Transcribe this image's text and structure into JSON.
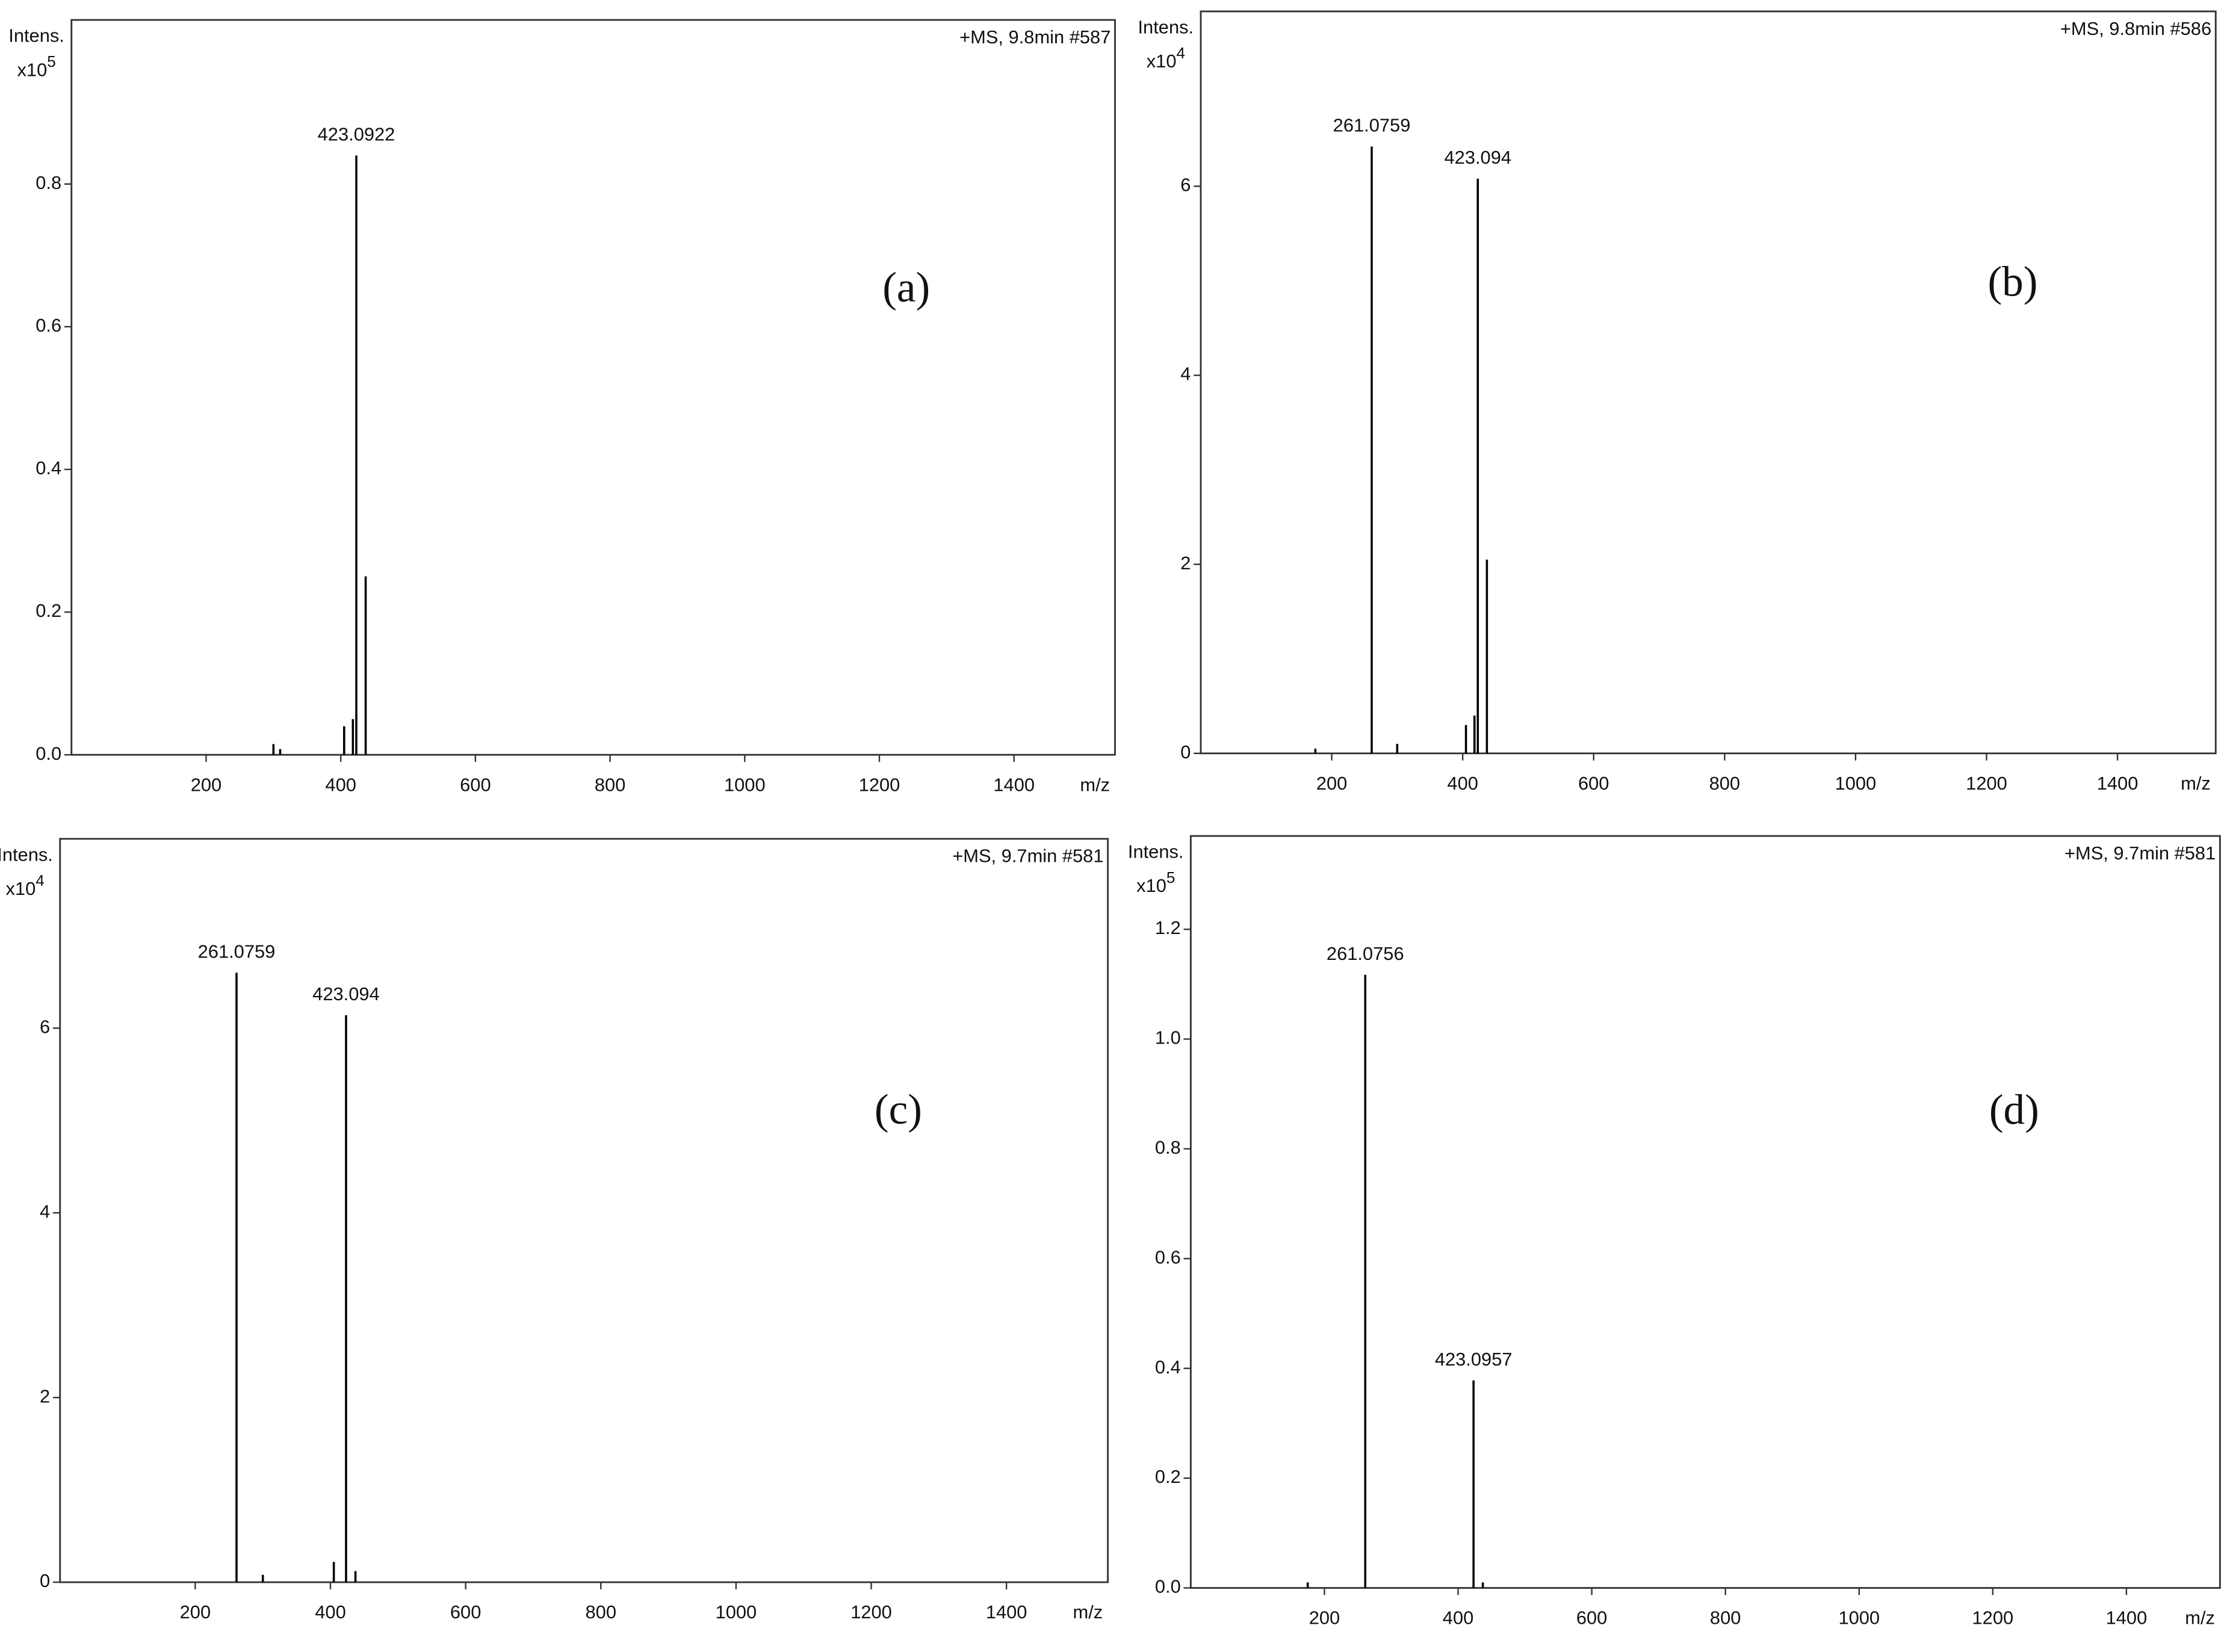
{
  "chart_data": [
    {
      "type": "spectrum",
      "title": "+MS, 9.8min #587",
      "panel_label": "(a)",
      "y_label": "Intens.",
      "y_multiplier": "x10",
      "y_exponent": "5",
      "x_label": "m/z",
      "peaks": {
        "x": [
          423.0922
        ],
        "values": [
          0.84
        ]
      },
      "minor_peaks": {
        "x": [
          300,
          310,
          405,
          418,
          437
        ],
        "values": [
          0.015,
          0.008,
          0.04,
          0.05,
          0.25
        ]
      },
      "xlim": [
        0,
        1550
      ],
      "ylim": [
        0,
        1.03
      ],
      "xticks": [
        200,
        400,
        600,
        800,
        1000,
        1200,
        1400
      ],
      "yticks": [
        {
          "value": 0,
          "label": "0.0"
        },
        0.2,
        0.4,
        0.6,
        0.8
      ],
      "color": "#000000"
    },
    {
      "type": "spectrum",
      "title": "+MS, 9.8min #586",
      "panel_label": "(b)",
      "y_label": "Intens.",
      "y_multiplier": "x10",
      "y_exponent": "4",
      "x_label": "m/z",
      "peaks": {
        "x": [
          261.0759,
          423.094
        ],
        "values": [
          6.42,
          6.08
        ]
      },
      "minor_peaks": {
        "x": [
          175,
          300,
          405,
          418,
          437
        ],
        "values": [
          0.05,
          0.1,
          0.3,
          0.4,
          2.05
        ]
      },
      "xlim": [
        0,
        1550
      ],
      "ylim": [
        0,
        7.85
      ],
      "xticks": [
        200,
        400,
        600,
        800,
        1000,
        1200,
        1400
      ],
      "yticks": [
        0,
        2,
        4,
        6
      ],
      "color": "#000000"
    },
    {
      "type": "spectrum",
      "title": "+MS, 9.7min #581",
      "panel_label": "(c)",
      "y_label": "Intens.",
      "y_multiplier": "x10",
      "y_exponent": "4",
      "x_label": "m/z",
      "peaks": {
        "x": [
          261.0759,
          423.094
        ],
        "values": [
          6.6,
          6.14
        ]
      },
      "minor_peaks": {
        "x": [
          300,
          405,
          437
        ],
        "values": [
          0.08,
          0.22,
          0.12
        ]
      },
      "xlim": [
        0,
        1550
      ],
      "ylim": [
        0,
        8.05
      ],
      "xticks": [
        200,
        400,
        600,
        800,
        1000,
        1200,
        1400
      ],
      "yticks": [
        0,
        2,
        4,
        6
      ],
      "color": "#000000"
    },
    {
      "type": "spectrum",
      "title": "+MS, 9.7min #581",
      "panel_label": "(d)",
      "y_label": "Intens.",
      "y_multiplier": "x10",
      "y_exponent": "5",
      "x_label": "m/z",
      "peaks": {
        "x": [
          261.0756,
          423.0957
        ],
        "values": [
          1.117,
          0.378
        ]
      },
      "minor_peaks": {
        "x": [
          175,
          437
        ],
        "values": [
          0.01,
          0.01
        ]
      },
      "xlim": [
        0,
        1540
      ],
      "ylim": [
        0,
        1.37
      ],
      "xticks": [
        200,
        400,
        600,
        800,
        1000,
        1200,
        1400
      ],
      "yticks": [
        {
          "value": 0,
          "label": "0.0"
        },
        0.2,
        0.4,
        0.6,
        0.8,
        {
          "value": 1,
          "label": "1.0"
        },
        1.2
      ],
      "color": "#000000"
    }
  ]
}
